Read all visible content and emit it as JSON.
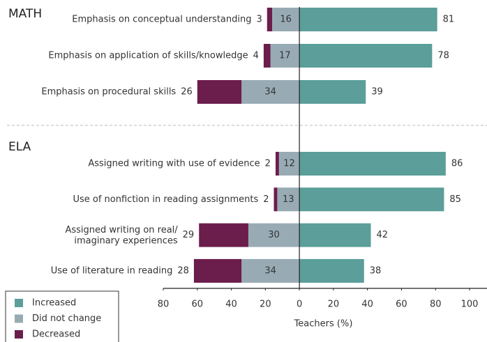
{
  "chart_data": [
    {
      "type": "bar",
      "orientation": "horizontal",
      "title": "MATH",
      "categories": [
        "Emphasis on conceptual understanding",
        "Emphasis on application of skills/knowledge",
        "Emphasis on procedural skills"
      ],
      "series": [
        {
          "name": "Increased",
          "color": "#5b9e9a",
          "side": "positive",
          "values": [
            81,
            78,
            39
          ]
        },
        {
          "name": "Did not change",
          "color": "#98abb5",
          "side": "negative",
          "values": [
            16,
            17,
            34
          ]
        },
        {
          "name": "Decreased",
          "color": "#6b1d4c",
          "side": "negative",
          "values": [
            3,
            4,
            26
          ]
        }
      ],
      "xlim": [
        -80,
        100
      ]
    },
    {
      "type": "bar",
      "orientation": "horizontal",
      "title": "ELA",
      "categories": [
        "Assigned writing with use of evidence",
        "Use of nonfiction in reading assignments",
        "Assigned writing on real/\nimaginary experiences",
        "Use of literature in reading"
      ],
      "series": [
        {
          "name": "Increased",
          "color": "#5b9e9a",
          "side": "positive",
          "values": [
            86,
            85,
            42,
            38
          ]
        },
        {
          "name": "Did not change",
          "color": "#98abb5",
          "side": "negative",
          "values": [
            12,
            13,
            30,
            34
          ]
        },
        {
          "name": "Decreased",
          "color": "#6b1d4c",
          "side": "negative",
          "values": [
            2,
            2,
            29,
            28
          ]
        }
      ],
      "xlim": [
        -80,
        100
      ],
      "xticks": [
        {
          "value": -80,
          "label": "80"
        },
        {
          "value": -60,
          "label": "60"
        },
        {
          "value": -40,
          "label": "40"
        },
        {
          "value": -20,
          "label": "20"
        },
        0,
        20,
        40,
        60,
        80,
        100
      ],
      "xlabel": "Teachers (%)"
    }
  ]
}
